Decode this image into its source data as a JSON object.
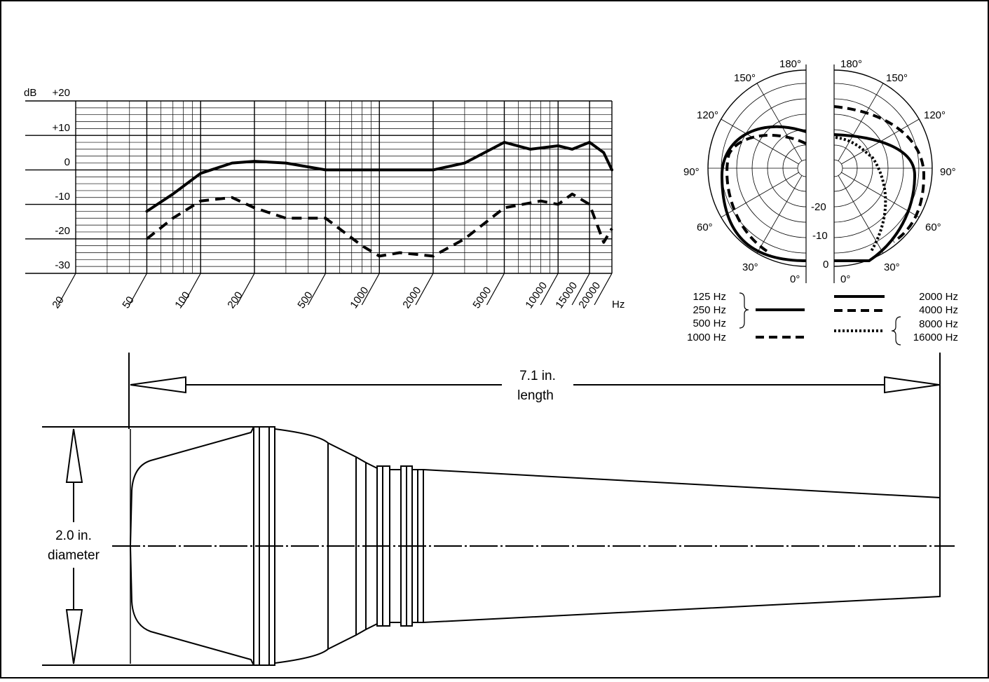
{
  "frequency_response": {
    "y_unit": "dB",
    "y_ticks": [
      "+20",
      "+10",
      "0",
      "-10",
      "-20",
      "-30"
    ],
    "x_unit": "Hz",
    "x_ticks": [
      "20",
      "50",
      "100",
      "200",
      "500",
      "1000",
      "2000",
      "5000",
      "10000",
      "15000",
      "20000"
    ]
  },
  "polar_pattern": {
    "angle_labels_left": [
      "180°",
      "150°",
      "120°",
      "90°",
      "60°",
      "30°",
      "0°"
    ],
    "angle_labels_right": [
      "180°",
      "150°",
      "120°",
      "90°",
      "60°",
      "30°",
      "0°"
    ],
    "ring_labels": [
      "-20",
      "-10",
      "0"
    ],
    "legend": {
      "left_group_solid": [
        "125 Hz",
        "250 Hz",
        "500 Hz"
      ],
      "left_dashed": "1000 Hz",
      "right_solid": "2000 Hz",
      "right_dashed": "4000 Hz",
      "right_dotted": [
        "8000 Hz",
        "16000 Hz"
      ]
    }
  },
  "dimensions": {
    "length_value": "7.1 in.",
    "length_word": "length",
    "diameter_value": "2.0 in.",
    "diameter_word": "diameter"
  },
  "chart_data": {
    "type": "line",
    "xlabel": "Hz",
    "ylabel": "dB",
    "x_scale": "log",
    "xlim": [
      20,
      20000
    ],
    "ylim": [
      -30,
      20
    ],
    "series": [
      {
        "style": "solid",
        "x": [
          50,
          70,
          100,
          150,
          200,
          300,
          500,
          1000,
          2000,
          3000,
          5000,
          7000,
          10000,
          12000,
          15000,
          18000,
          20000
        ],
        "y": [
          -12,
          -7,
          -1,
          2,
          2.5,
          2,
          0,
          0,
          0,
          2,
          8,
          6,
          7,
          6,
          8,
          5,
          0
        ]
      },
      {
        "style": "dashed",
        "x": [
          50,
          70,
          100,
          150,
          200,
          300,
          500,
          800,
          1000,
          1300,
          2000,
          3000,
          5000,
          8000,
          10000,
          12000,
          15000,
          18000,
          20000
        ],
        "y": [
          -20,
          -14,
          -9,
          -8,
          -11,
          -14,
          -14,
          -22,
          -25,
          -24,
          -25,
          -20,
          -11,
          -9,
          -10,
          -7,
          -10,
          -21,
          -17
        ]
      }
    ]
  }
}
